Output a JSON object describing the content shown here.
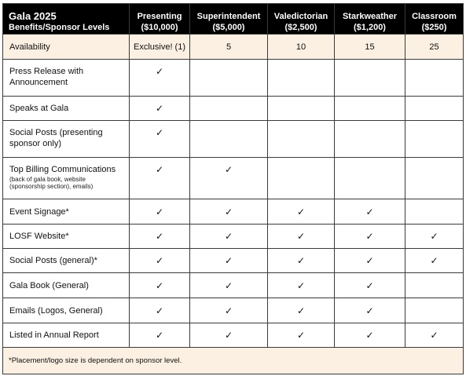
{
  "header": {
    "title": "Gala 2025",
    "subtitle": "Benefits/Sponsor Levels",
    "levels": [
      {
        "name": "Presenting",
        "amount": "($10,000)"
      },
      {
        "name": "Superintendent",
        "amount": "($5,000)"
      },
      {
        "name": "Valedictorian",
        "amount": "($2,500)"
      },
      {
        "name": "Starkweather",
        "amount": "($1,200)"
      },
      {
        "name": "Classroom",
        "amount": "($250)"
      }
    ]
  },
  "availability": {
    "label": "Availability",
    "values": [
      "Exclusive! (1)",
      "5",
      "10",
      "15",
      "25"
    ]
  },
  "check_symbol": "✓",
  "benefits": [
    {
      "label": "Press Release with Announcement",
      "note": "",
      "checks": [
        true,
        false,
        false,
        false,
        false
      ]
    },
    {
      "label": "Speaks at Gala",
      "note": "",
      "checks": [
        true,
        false,
        false,
        false,
        false
      ]
    },
    {
      "label": "Social Posts (presenting sponsor only)",
      "note": "",
      "checks": [
        true,
        false,
        false,
        false,
        false
      ]
    },
    {
      "label": "Top Billing Communications",
      "note": "(back of gala book, website (sponsorship section), emails)",
      "checks": [
        true,
        true,
        false,
        false,
        false
      ]
    },
    {
      "label": "Event Signage*",
      "note": "",
      "checks": [
        true,
        true,
        true,
        true,
        false
      ]
    },
    {
      "label": "LOSF Website*",
      "note": "",
      "checks": [
        true,
        true,
        true,
        true,
        true
      ]
    },
    {
      "label": "Social Posts (general)*",
      "note": "",
      "checks": [
        true,
        true,
        true,
        true,
        true
      ]
    },
    {
      "label": "Gala Book (General)",
      "note": "",
      "checks": [
        true,
        true,
        true,
        true,
        false
      ]
    },
    {
      "label": "Emails (Logos, General)",
      "note": "",
      "checks": [
        true,
        true,
        true,
        true,
        false
      ]
    },
    {
      "label": "Listed in Annual Report",
      "note": "",
      "checks": [
        true,
        true,
        true,
        true,
        true
      ]
    }
  ],
  "footnote": "*Placement/logo size is dependent on sponsor level."
}
